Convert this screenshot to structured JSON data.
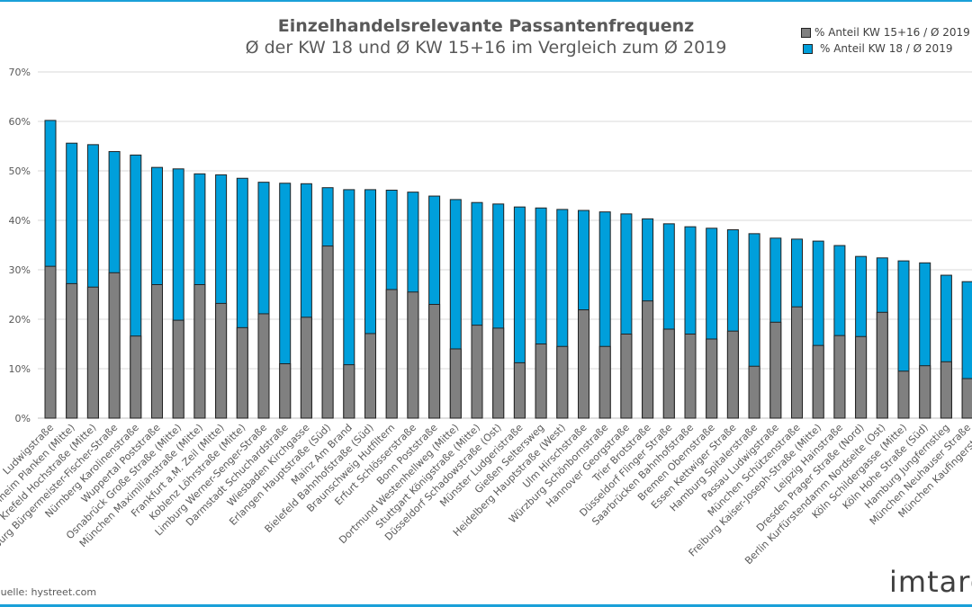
{
  "chart_data": {
    "type": "bar",
    "title": "Einzelhandelsrelevante Passantenfrequenz",
    "subtitle": "Ø der KW 18 und Ø KW 15+16 im Vergleich zum Ø 2019",
    "ylim": [
      0,
      70
    ],
    "yticks": [
      "0%",
      "10%",
      "20%",
      "30%",
      "40%",
      "50%",
      "60%",
      "70%"
    ],
    "grid": true,
    "legend_placement": "top-right",
    "bar_mode": "overlapping",
    "categories": [
      "Ludwigstraße",
      "Mannheim Planken (Mitte)",
      "Krefeld Hochstraße (Mitte)",
      "Augsburg Bürgermeister-Fischer-Straße",
      "Nürnberg Karolinenstraße",
      "Wuppertal Poststraße",
      "Osnabrück Große Straße (Mitte)",
      "München Maximilianstraße (Mitte)",
      "Frankfurt a.M. Zeil (Mitte)",
      "Koblenz Löhrstraße (Mitte)",
      "Limburg Werner-Senger-Straße",
      "Darmstadt Schuchardstraße",
      "Wiesbaden Kirchgasse",
      "Erlangen Hauptstraße (Süd)",
      "Mainz Am Brand",
      "Bielefeld Bahnhofstraße (Süd)",
      "Braunschweig Hutfiltern",
      "Erfurt Schlösserstraße",
      "Bonn Poststraße",
      "Dortmund Westenhellweg (Mitte)",
      "Stuttgart Königstraße (Mitte)",
      "Düsseldorf Schadowstraße (Ost)",
      "Münster Ludgeristraße",
      "Gießen Seltersweg",
      "Heidelberg Hauptstraße (West)",
      "Ulm Hirschstraße",
      "Würzburg Schönbornstraße",
      "Hannover Georgstraße",
      "Trier Brotstraße",
      "Düsseldorf Flinger Straße",
      "Saarbrücken Bahnhofstraße",
      "Bremen Obernstraße",
      "Essen Kettwiger Straße",
      "Hamburg Spitalerstraße",
      "Passau Ludwigstraße",
      "München Schützenstraße",
      "Freiburg Kaiser-Joseph-Straße (Mitte)",
      "Leipzig Hainstraße",
      "Dresden Prager Straße (Nord)",
      "Berlin Kurfürstendamm Nordseite (Ost)",
      "Köln Schildergasse (Mitte)",
      "Köln Hohe Straße (Süd)",
      "Hamburg Jungfernstieg",
      "München Neuhauser Straße",
      "München Kaufingerstraße"
    ],
    "series": [
      {
        "name": "% Anteil KW 18 / Ø 2019",
        "color": "#009fdb",
        "values": [
          60.2,
          55.6,
          55.3,
          53.9,
          53.2,
          50.7,
          50.4,
          49.4,
          49.2,
          48.5,
          47.7,
          47.5,
          47.4,
          46.6,
          46.2,
          46.2,
          46.1,
          45.7,
          44.9,
          44.2,
          43.6,
          43.3,
          42.7,
          42.5,
          42.2,
          42.0,
          41.7,
          41.3,
          40.3,
          39.3,
          38.7,
          38.4,
          38.1,
          37.3,
          36.4,
          36.2,
          35.8,
          34.9,
          32.7,
          32.4,
          31.8,
          31.4,
          28.9,
          27.6,
          null
        ]
      },
      {
        "name": "% Anteil KW 15+16 / Ø 2019",
        "color": "#808080",
        "values": [
          30.7,
          27.2,
          26.5,
          29.4,
          16.6,
          27.0,
          19.8,
          27.0,
          23.2,
          18.3,
          21.1,
          11.0,
          20.4,
          34.8,
          10.8,
          17.1,
          26.0,
          25.5,
          23.0,
          14.0,
          18.8,
          18.2,
          11.2,
          15.0,
          14.5,
          21.9,
          14.5,
          17.0,
          23.7,
          18.0,
          17.0,
          16.0,
          17.6,
          10.5,
          19.4,
          22.5,
          14.7,
          16.7,
          16.5,
          21.4,
          9.5,
          10.6,
          11.4,
          8.0,
          null
        ]
      }
    ]
  },
  "legend": {
    "items": [
      {
        "label": "% Anteil KW 15+16 / Ø 2019",
        "color": "#808080"
      },
      {
        "label": "% Anteil KW 18 / Ø 2019",
        "color": "#009fdb"
      }
    ]
  },
  "source": "Quelle: hystreet.com",
  "logo": "imtargo",
  "accent_color": "#1aa0d8"
}
